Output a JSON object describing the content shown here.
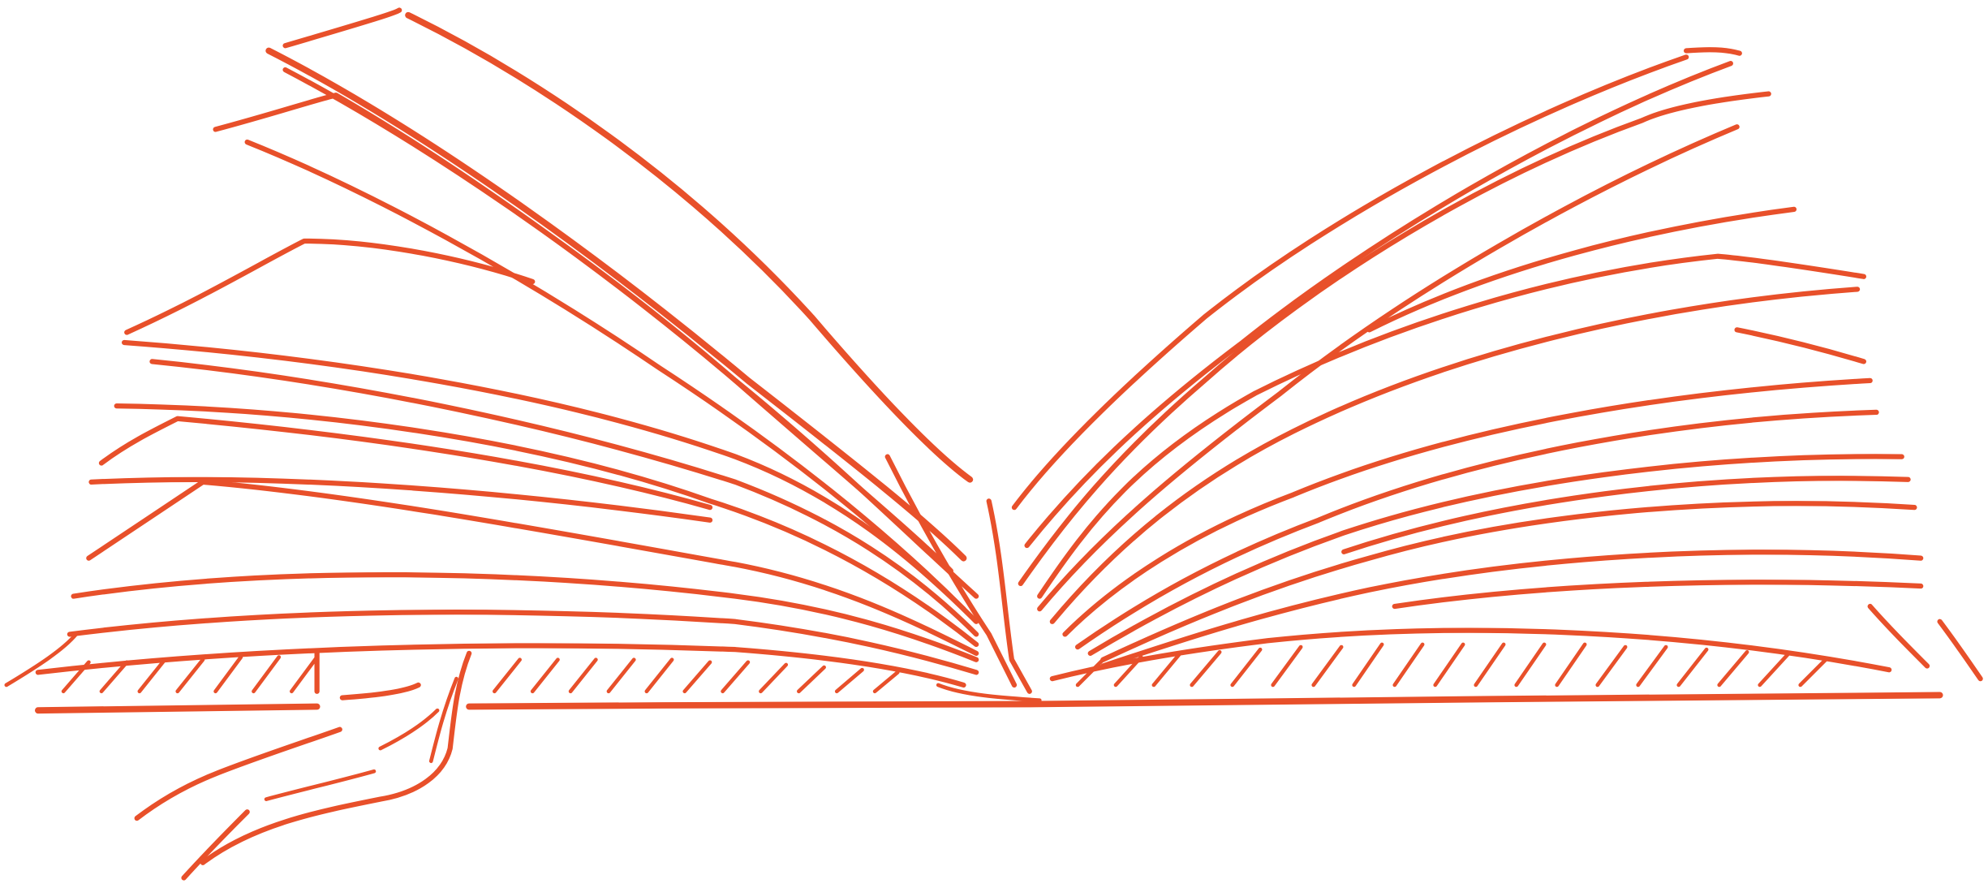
{
  "illustration": {
    "subject": "open-book-sketch",
    "ink_color": "#e8502a",
    "background_color": "#ffffff",
    "has_bookmark_ribbon": true
  }
}
